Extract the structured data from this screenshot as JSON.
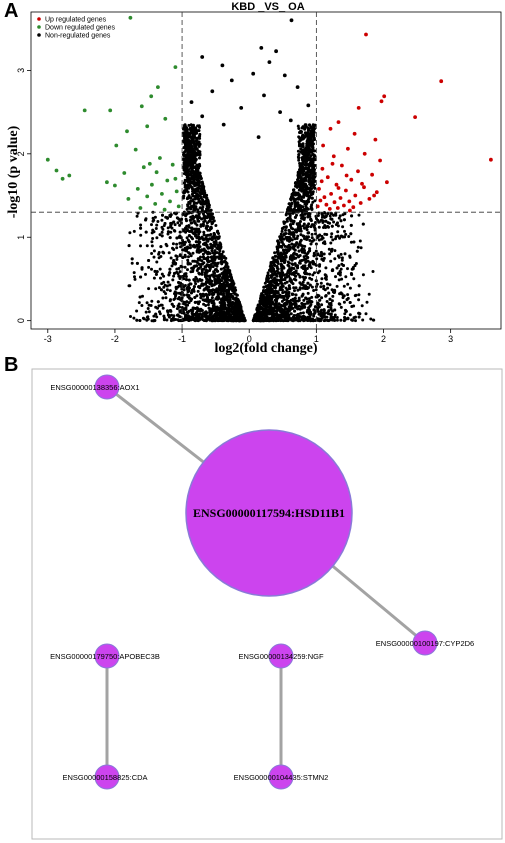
{
  "panel_a": {
    "letter": "A",
    "chart_data": {
      "type": "scatter",
      "title": "KBD _VS_ OA",
      "xlabel": "log2(fold change)",
      "ylabel": "-log10 (p value)",
      "xlim": [
        -3.25,
        3.75
      ],
      "ylim": [
        -0.1,
        3.7
      ],
      "x_ticks": [
        -3,
        -2,
        -1,
        0,
        1,
        2,
        3
      ],
      "y_ticks": [
        0,
        1,
        2,
        3
      ],
      "thresholds": {
        "fold_change": [
          -1,
          1
        ],
        "p_value_log": 1.3
      },
      "grid": false,
      "legend_position": "top-left",
      "series": [
        {
          "name": "Up regulated genes",
          "color": "#cc0000",
          "points": [
            [
              1.74,
              3.43
            ],
            [
              2.86,
              2.87
            ],
            [
              2.01,
              2.69
            ],
            [
              1.97,
              2.63
            ],
            [
              1.63,
              2.55
            ],
            [
              2.47,
              2.44
            ],
            [
              3.6,
              1.93
            ],
            [
              1.33,
              2.38
            ],
            [
              1.21,
              2.3
            ],
            [
              1.57,
              2.24
            ],
            [
              1.88,
              2.17
            ],
            [
              1.1,
              2.1
            ],
            [
              1.47,
              2.06
            ],
            [
              1.72,
              2.0
            ],
            [
              1.26,
              1.97
            ],
            [
              1.95,
              1.92
            ],
            [
              1.38,
              1.86
            ],
            [
              1.09,
              1.82
            ],
            [
              1.62,
              1.79
            ],
            [
              1.83,
              1.75
            ],
            [
              1.17,
              1.72
            ],
            [
              1.52,
              1.69
            ],
            [
              2.05,
              1.66
            ],
            [
              1.3,
              1.63
            ],
            [
              1.71,
              1.6
            ],
            [
              1.04,
              1.58
            ],
            [
              1.44,
              1.56
            ],
            [
              1.9,
              1.54
            ],
            [
              1.22,
              1.52
            ],
            [
              1.58,
              1.5
            ],
            [
              1.12,
              1.48
            ],
            [
              1.36,
              1.47
            ],
            [
              1.79,
              1.46
            ],
            [
              1.06,
              1.44
            ],
            [
              1.49,
              1.43
            ],
            [
              1.27,
              1.42
            ],
            [
              1.66,
              1.41
            ],
            [
              1.15,
              1.39
            ],
            [
              1.41,
              1.38
            ],
            [
              1.02,
              1.37
            ],
            [
              1.55,
              1.36
            ],
            [
              1.32,
              1.35
            ],
            [
              1.2,
              1.34
            ],
            [
              1.86,
              1.5
            ],
            [
              1.68,
              1.64
            ],
            [
              1.45,
              1.74
            ],
            [
              1.33,
              1.59
            ],
            [
              1.08,
              1.67
            ],
            [
              1.24,
              1.88
            ],
            [
              1.5,
              1.32
            ]
          ]
        },
        {
          "name": "Down regulated genes",
          "color": "#2e8b2e",
          "points": [
            [
              -1.77,
              3.63
            ],
            [
              -1.1,
              3.04
            ],
            [
              -1.36,
              2.8
            ],
            [
              -1.46,
              2.69
            ],
            [
              -1.6,
              2.57
            ],
            [
              -2.07,
              2.52
            ],
            [
              -2.45,
              2.52
            ],
            [
              -1.25,
              2.42
            ],
            [
              -1.52,
              2.33
            ],
            [
              -1.82,
              2.27
            ],
            [
              -1.98,
              2.1
            ],
            [
              -1.69,
              2.05
            ],
            [
              -3.0,
              1.93
            ],
            [
              -2.87,
              1.8
            ],
            [
              -1.33,
              1.95
            ],
            [
              -1.14,
              1.87
            ],
            [
              -1.57,
              1.84
            ],
            [
              -1.86,
              1.77
            ],
            [
              -2.68,
              1.74
            ],
            [
              -2.78,
              1.7
            ],
            [
              -1.22,
              1.68
            ],
            [
              -1.45,
              1.63
            ],
            [
              -2.0,
              1.62
            ],
            [
              -1.66,
              1.58
            ],
            [
              -1.08,
              1.55
            ],
            [
              -1.3,
              1.52
            ],
            [
              -1.52,
              1.49
            ],
            [
              -1.8,
              1.46
            ],
            [
              -1.18,
              1.43
            ],
            [
              -1.4,
              1.4
            ],
            [
              -1.05,
              1.37
            ],
            [
              -1.62,
              1.35
            ],
            [
              -1.26,
              1.33
            ],
            [
              -1.1,
              1.7
            ],
            [
              -1.38,
              1.78
            ],
            [
              -1.48,
              1.88
            ],
            [
              -2.12,
              1.66
            ]
          ]
        },
        {
          "name": "Non-regulated genes",
          "color": "#000000",
          "points": [
            [
              0.63,
              3.6
            ],
            [
              0.18,
              3.27
            ],
            [
              0.4,
              3.23
            ],
            [
              -0.7,
              3.16
            ],
            [
              0.3,
              3.1
            ],
            [
              -0.4,
              3.06
            ],
            [
              0.06,
              2.96
            ],
            [
              0.53,
              2.94
            ],
            [
              -0.26,
              2.88
            ],
            [
              0.72,
              2.8
            ],
            [
              -0.55,
              2.75
            ],
            [
              0.22,
              2.7
            ],
            [
              -0.86,
              2.62
            ],
            [
              0.88,
              2.58
            ],
            [
              -0.12,
              2.55
            ],
            [
              0.46,
              2.5
            ],
            [
              -0.7,
              2.45
            ],
            [
              0.62,
              2.4
            ],
            [
              -0.38,
              2.35
            ],
            [
              0.95,
              2.3
            ],
            [
              -0.95,
              2.25
            ],
            [
              0.14,
              2.2
            ]
          ]
        }
      ],
      "cloud_note": ""
    }
  },
  "panel_b": {
    "letter": "B",
    "nodes": [
      {
        "id": "hub",
        "label": "ENSG00000117594:HSD11B1"
      },
      {
        "id": "aox1",
        "label": "ENSG00000138356:AOX1"
      },
      {
        "id": "cyp2d6",
        "label": "ENSG00000100197:CYP2D6"
      },
      {
        "id": "apobec3b",
        "label": "ENSG00000179750:APOBEC3B"
      },
      {
        "id": "cda",
        "label": "ENSG00000158825:CDA"
      },
      {
        "id": "ngf",
        "label": "ENSG00000134259:NGF"
      },
      {
        "id": "stmn2",
        "label": "ENSG00000104435:STMN2"
      }
    ],
    "edges": [
      [
        "aox1",
        "hub"
      ],
      [
        "hub",
        "cyp2d6"
      ],
      [
        "apobec3b",
        "cda"
      ],
      [
        "ngf",
        "stmn2"
      ]
    ],
    "colors": {
      "node_fill": "#cc44ee",
      "node_stroke": "#8a7ad8",
      "edge": "#a3a3a3"
    }
  }
}
